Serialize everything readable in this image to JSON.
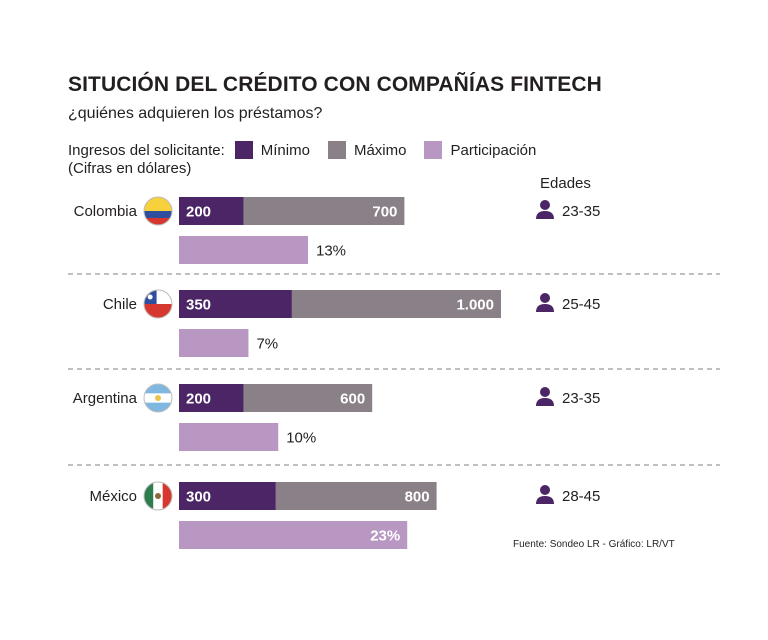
{
  "title": "SITUCIÓN DEL CRÉDITO CON COMPAÑÍAS FINTECH",
  "subtitle": "¿quiénes adquieren los préstamos?",
  "legend": {
    "lead": "Ingresos del solicitante:",
    "note": "(Cifras en dólares)",
    "items": [
      {
        "label": "Mínimo",
        "color": "#4b2566"
      },
      {
        "label": "Máximo",
        "color": "#8a8088"
      },
      {
        "label": "Participación",
        "color": "#b898c2"
      }
    ]
  },
  "ages_header": "Edades",
  "footer": "Fuente: Sondeo LR - Gráfico: LR/VT",
  "colors": {
    "min": "#4b2566",
    "max": "#8a8088",
    "share": "#b898c2",
    "divider": "#9a9a9a",
    "person_icon": "#4b2566"
  },
  "chart_data": {
    "type": "bar",
    "categories": [
      "Colombia",
      "Chile",
      "Argentina",
      "México"
    ],
    "series": [
      {
        "name": "Mínimo",
        "values": [
          200,
          350,
          200,
          300
        ],
        "labels": [
          "200",
          "350",
          "200",
          "300"
        ]
      },
      {
        "name": "Máximo",
        "values": [
          700,
          1000,
          600,
          800
        ],
        "labels": [
          "700",
          "1.000",
          "600",
          "800"
        ]
      },
      {
        "name": "Participación",
        "values": [
          13,
          7,
          10,
          23
        ],
        "labels": [
          "13%",
          "7%",
          "10%",
          "23%"
        ]
      }
    ],
    "ages": [
      "23-35",
      "25-45",
      "23-35",
      "28-45"
    ],
    "flags": [
      "colombia-flag-icon",
      "chile-flag-icon",
      "argentina-flag-icon",
      "mexico-flag-icon"
    ]
  }
}
